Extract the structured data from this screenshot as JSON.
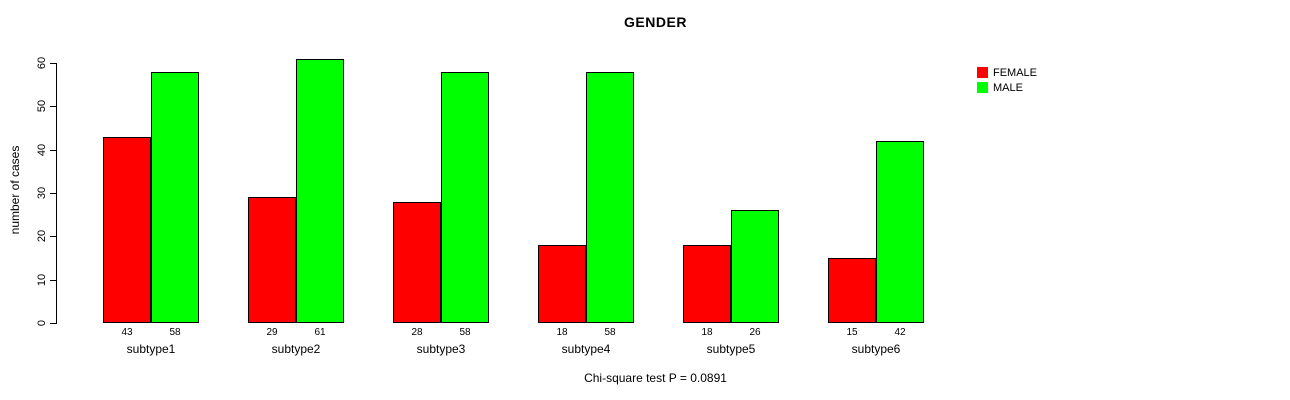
{
  "chart_data": {
    "type": "bar",
    "title": "GENDER",
    "ylabel": "number of cases",
    "xlabel": "",
    "caption": "Chi-square test P = 0.0891",
    "categories": [
      "subtype1",
      "subtype2",
      "subtype3",
      "subtype4",
      "subtype5",
      "subtype6"
    ],
    "series": [
      {
        "name": "FEMALE",
        "color": "#FF0000",
        "values": [
          43,
          29,
          28,
          18,
          18,
          15
        ]
      },
      {
        "name": "MALE",
        "color": "#00FF00",
        "values": [
          58,
          61,
          58,
          58,
          26,
          42
        ]
      }
    ],
    "bar_value_labels": {
      "FEMALE": [
        43,
        29,
        28,
        18,
        18,
        15
      ],
      "MALE": [
        58,
        61,
        58,
        58,
        26,
        42
      ]
    },
    "y_ticks": [
      0,
      10,
      20,
      30,
      40,
      50,
      60
    ],
    "ylim": [
      0,
      60
    ],
    "grid": false,
    "legend_position": "right-outside",
    "bar_style": {
      "outline_color": "#000000",
      "grouped": true
    }
  }
}
